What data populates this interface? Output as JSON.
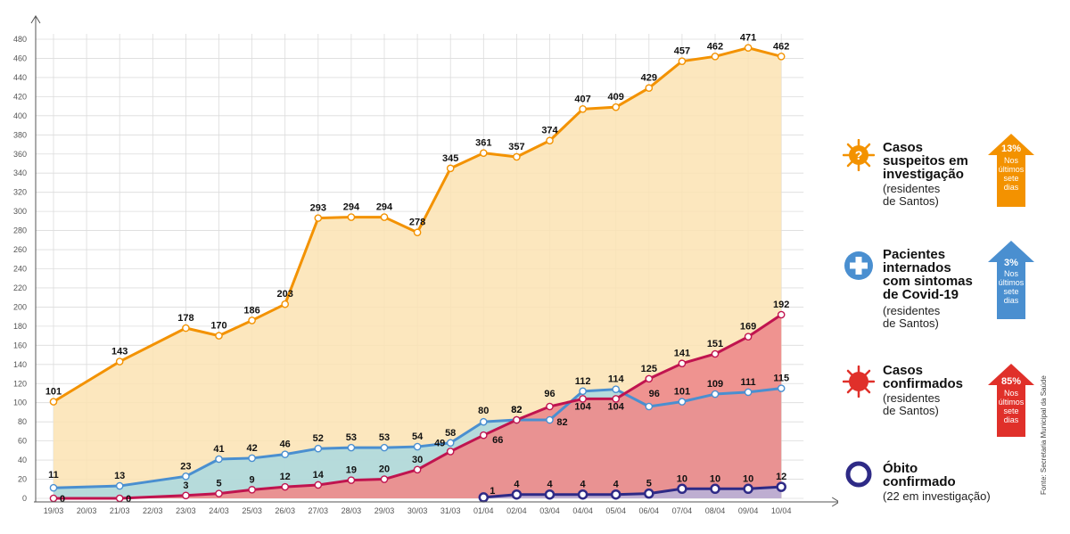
{
  "chart_data": {
    "type": "area",
    "title": "",
    "xlabel": "",
    "ylabel": "",
    "ylim": [
      0,
      480
    ],
    "yticks": [
      0,
      20,
      40,
      60,
      80,
      100,
      120,
      140,
      160,
      180,
      200,
      220,
      240,
      260,
      280,
      300,
      320,
      340,
      360,
      380,
      400,
      420,
      440,
      460,
      480
    ],
    "grid": true,
    "categories": [
      "19/03",
      "20/03",
      "21/03",
      "22/03",
      "23/03",
      "24/03",
      "25/03",
      "26/03",
      "27/03",
      "28/03",
      "29/03",
      "30/03",
      "31/03",
      "01/04",
      "02/04",
      "03/04",
      "04/04",
      "05/04",
      "06/04",
      "07/04",
      "08/04",
      "09/04",
      "10/04"
    ],
    "series": [
      {
        "key": "suspeitos",
        "color": "#f39200",
        "fill": "#fbe3b3",
        "values": [
          101,
          null,
          143,
          null,
          178,
          170,
          186,
          203,
          293,
          294,
          294,
          278,
          345,
          361,
          357,
          374,
          407,
          409,
          429,
          457,
          462,
          471,
          462
        ]
      },
      {
        "key": "internados",
        "color": "#4a8fd0",
        "fill": "#a9d8e0",
        "values": [
          11,
          null,
          13,
          null,
          23,
          41,
          42,
          46,
          52,
          53,
          53,
          54,
          58,
          80,
          82,
          82,
          112,
          114,
          96,
          101,
          109,
          111,
          115
        ]
      },
      {
        "key": "confirmados",
        "color": "#c0144f",
        "fill": "#ee8c8c",
        "values": [
          0,
          null,
          0,
          null,
          3,
          5,
          9,
          12,
          14,
          19,
          20,
          30,
          49,
          66,
          82,
          96,
          104,
          104,
          125,
          141,
          151,
          169,
          192
        ]
      },
      {
        "key": "obitos",
        "color": "#2e2a86",
        "fill": "#b6b3dc",
        "values": [
          null,
          null,
          null,
          null,
          null,
          null,
          null,
          null,
          null,
          null,
          null,
          null,
          null,
          1,
          4,
          4,
          4,
          4,
          5,
          10,
          10,
          10,
          12
        ]
      }
    ]
  },
  "legend": {
    "suspeitos": {
      "title": "Casos\nsuspeitos em\ninvestigação",
      "sub": "(residentes\nde Santos)",
      "icon": "virus-question-icon",
      "arrow_pct": "13%",
      "arrow_text": "Nos\núltimos\nsete\ndias",
      "arrow_color": "#f39200"
    },
    "internados": {
      "title": "Pacientes\ninternados\ncom sintomas\nde Covid-19",
      "sub": "(residentes\nde Santos)",
      "icon": "hospital-cross-icon",
      "arrow_pct": "3%",
      "arrow_text": "Nos\núltimos\nsete\ndias",
      "arrow_color": "#4a8fd0"
    },
    "confirmados": {
      "title": "Casos\nconfirmados",
      "sub": "(residentes\nde Santos)",
      "icon": "virus-icon",
      "arrow_pct": "85%",
      "arrow_text": "Nos\núltimos\nsete\ndias",
      "arrow_color": "#e0302a"
    },
    "obitos": {
      "title": "Óbito\nconfirmado",
      "sub": "(22 em investigação)",
      "icon": "circle-icon"
    }
  },
  "source": "Fonte: Secretaria Municipal da Saúde"
}
